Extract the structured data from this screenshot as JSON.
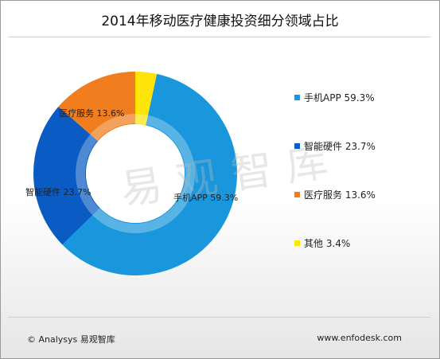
{
  "title": "2014年移动医疗健康投资细分领域占比",
  "chart_data": {
    "type": "pie",
    "title": "2014年移动医疗健康投资细分领域占比",
    "series": [
      {
        "label": "手机APP",
        "value": 59.3,
        "value_text": "59.3%",
        "color": "#1a96dc"
      },
      {
        "label": "智能硬件",
        "value": 23.7,
        "value_text": "23.7%",
        "color": "#0a5cc4"
      },
      {
        "label": "医疗服务",
        "value": 13.6,
        "value_text": "13.6%",
        "color": "#f07d1e"
      },
      {
        "label": "其他",
        "value": 3.4,
        "value_text": "3.4%",
        "color": "#ffe40a"
      }
    ],
    "legend_position": "right"
  },
  "watermark": "易观智库",
  "footer": {
    "left": "© Analysys 易观智库",
    "right": "www.enfodesk.com"
  }
}
